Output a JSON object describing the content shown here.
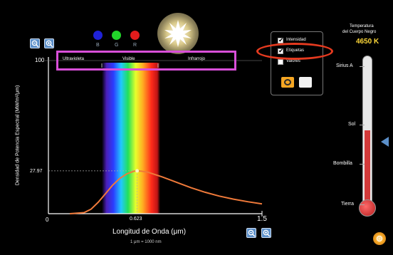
{
  "colors": {
    "background": "#000000",
    "curve": "#f07a3a",
    "highlight_box": "#d94fd9",
    "highlight_ellipse": "#e53a1f",
    "temperature_value": "#ffd83a",
    "thermometer_fill": "#d23a3a",
    "panel_border": "#777777"
  },
  "top_controls": {
    "dots": [
      {
        "color": "#1f22d8",
        "label": "B"
      },
      {
        "color": "#22d62a",
        "label": "G"
      },
      {
        "color": "#e21c1c",
        "label": "R"
      }
    ],
    "sun_icon": "sun-icon"
  },
  "graph": {
    "ylabel": "Densidad de Potencia Espectral (MW/m²/μm)",
    "xlabel": "Longitud de Onda (μm)",
    "unit_note": "1 μm = 1000 nm",
    "y_max_label": "100",
    "y_peak_label": "27.97",
    "x_zero_label": "0",
    "x_peak_label": "0.623",
    "x_max_label": "1.5",
    "bands": [
      "Ultravioleta",
      "Visible",
      "Infrarrojo"
    ]
  },
  "chart_data": {
    "type": "line",
    "xlabel": "Longitud de Onda (μm)",
    "ylabel": "Densidad de Potencia Espectral (MW/m²/μm)",
    "xlim": [
      0,
      1.5
    ],
    "ylim": [
      0,
      100
    ],
    "peak": {
      "x": 0.623,
      "y": 27.97
    },
    "series": [
      {
        "x": [
          0.15,
          0.25,
          0.3,
          0.35,
          0.4,
          0.45,
          0.5,
          0.55,
          0.6,
          0.623,
          0.65,
          0.7,
          0.8,
          0.9,
          1.0,
          1.1,
          1.2,
          1.3,
          1.4,
          1.5
        ],
        "y": [
          0,
          0.7,
          3,
          7.5,
          13,
          18.5,
          23,
          26,
          27.7,
          27.97,
          27.8,
          27,
          24,
          20.5,
          17,
          14,
          11.5,
          9.5,
          7.8,
          6.4
        ]
      }
    ]
  },
  "options_panel": {
    "items": [
      {
        "label": "Intensidad",
        "checked": true
      },
      {
        "label": "Etiquetas",
        "checked": true
      },
      {
        "label": "Valores",
        "checked": false
      }
    ],
    "camera_icon": "camera-icon",
    "eraser_icon": "eraser-icon"
  },
  "thermometer": {
    "title_line1": "Temperatura",
    "title_line2": "del Cuerpo Negro",
    "value": "4650 K",
    "level_fraction": 0.49,
    "marks": [
      "Sirius A",
      "Sol",
      "Bombilla",
      "Tierra"
    ]
  },
  "bottom_right_icon": "reset-icon"
}
